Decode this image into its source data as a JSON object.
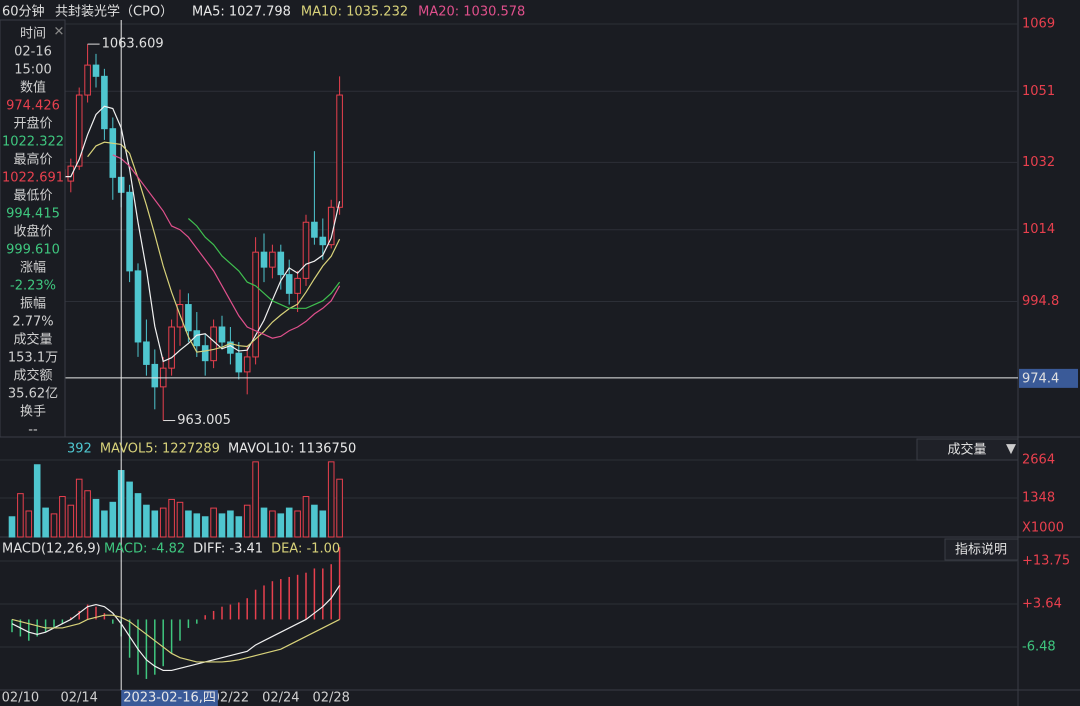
{
  "header": {
    "period": "60分钟",
    "name": "共封装光学（CPO）",
    "indicators": [
      {
        "text": "MA5: 1027.798",
        "color": "#e8e8e8"
      },
      {
        "text": "MA10: 1035.232",
        "color": "#d8d27a"
      },
      {
        "text": "MA20: 1030.578",
        "color": "#e0508c"
      }
    ]
  },
  "info_panel": [
    {
      "text": "时间",
      "color": "#d0d0d0"
    },
    {
      "text": "02-16",
      "color": "#d0d0d0"
    },
    {
      "text": "15:00",
      "color": "#d0d0d0"
    },
    {
      "text": "数值",
      "color": "#d0d0d0"
    },
    {
      "text": "974.426",
      "color": "#e8404e"
    },
    {
      "text": "开盘价",
      "color": "#d0d0d0"
    },
    {
      "text": "1022.322",
      "color": "#3fc77f"
    },
    {
      "text": "最高价",
      "color": "#d0d0d0"
    },
    {
      "text": "1022.691",
      "color": "#e8404e"
    },
    {
      "text": "最低价",
      "color": "#d0d0d0"
    },
    {
      "text": "994.415",
      "color": "#3fc77f"
    },
    {
      "text": "收盘价",
      "color": "#d0d0d0"
    },
    {
      "text": "999.610",
      "color": "#3fc77f"
    },
    {
      "text": "涨幅",
      "color": "#d0d0d0"
    },
    {
      "text": "-2.23%",
      "color": "#3fc77f"
    },
    {
      "text": "振幅",
      "color": "#d0d0d0"
    },
    {
      "text": "2.77%",
      "color": "#d0d0d0"
    },
    {
      "text": "成交量",
      "color": "#d0d0d0"
    },
    {
      "text": "153.1万",
      "color": "#d0d0d0"
    },
    {
      "text": "成交额",
      "color": "#d0d0d0"
    },
    {
      "text": "35.62亿",
      "color": "#d0d0d0"
    },
    {
      "text": "换手",
      "color": "#d0d0d0"
    },
    {
      "text": "--",
      "color": "#d0d0d0"
    }
  ],
  "chart_data": [
    {
      "type": "candlestick",
      "up_color": "#e8404e",
      "down_color": "#4fc6cf",
      "open": [
        1028,
        1026,
        1029,
        1031,
        1027,
        1025,
        1028,
        1027,
        1031,
        1050,
        1058,
        1055,
        1041,
        1028,
        1024,
        1003,
        984,
        978,
        972,
        977,
        988,
        994,
        987,
        983,
        979,
        988,
        984,
        981,
        976,
        980,
        1008,
        1004,
        1008,
        1002,
        997,
        1001,
        1016,
        1012,
        1010,
        1020
      ],
      "high": [
        1031,
        1030,
        1033,
        1034,
        1030,
        1029,
        1032,
        1033,
        1052,
        1063.609,
        1061,
        1057,
        1044,
        1036,
        1026,
        1005,
        990,
        982,
        980,
        990,
        998,
        997,
        992,
        986,
        990,
        991,
        988,
        984,
        983,
        1012,
        1013,
        1010,
        1010,
        1006,
        1003,
        1018,
        1035,
        1017,
        1022,
        1055
      ],
      "low": [
        1024,
        1022,
        1027,
        1026,
        1023,
        1021,
        1025,
        1024,
        1030,
        1048,
        1052,
        1038,
        1022,
        1020,
        1000,
        980,
        975,
        966,
        963.005,
        975,
        983,
        984,
        980,
        975,
        977,
        982,
        978,
        974,
        970,
        978,
        1000,
        1001,
        998,
        994,
        992,
        999,
        1010,
        1006,
        1009,
        1018
      ],
      "close": [
        1026,
        1029,
        1031,
        1027,
        1025,
        1028,
        1030,
        1031,
        1050,
        1058,
        1055,
        1041,
        1028,
        1024,
        1003,
        984,
        978,
        972,
        977,
        988,
        994,
        987,
        983,
        979,
        988,
        984,
        981,
        976,
        980,
        1008,
        1004,
        1008,
        1002,
        997,
        1001,
        1016,
        1012,
        1010,
        1020,
        1050
      ],
      "series": [
        {
          "color": "#f0f0f0",
          "values": [
            null,
            null,
            null,
            null,
            1027.6,
            1028,
            1028.2,
            1028.2,
            1032.8,
            1039.4,
            1044.8,
            1047,
            1046.4,
            1041.2,
            1030.2,
            1016,
            1003.4,
            988.2,
            978.8,
            979.8,
            981.8,
            983.6,
            985.8,
            986.2,
            984.2,
            982.2,
            983,
            981.6,
            981.8,
            985.8,
            989.8,
            995.2,
            1000.4,
            1003.8,
            1002.4,
            1004.8,
            1005.6,
            1007.2,
            1011.8,
            1021.6
          ]
        },
        {
          "color": "#d8d27a",
          "values": [
            null,
            null,
            null,
            null,
            null,
            null,
            null,
            null,
            null,
            1033.5,
            1036.4,
            1037.4,
            1037.1,
            1036.8,
            1034.4,
            1027.8,
            1020.6,
            1012.7,
            1004.3,
            997.3,
            991.2,
            985.4,
            981.3,
            981.6,
            982,
            982.6,
            983.6,
            983,
            982.8,
            984.8,
            986.8,
            989.3,
            991.2,
            992.9,
            994.1,
            997.3,
            1000.9,
            1004.3,
            1006.9,
            1011.5
          ]
        },
        {
          "color": "#e0508c",
          "values": [
            null,
            null,
            null,
            null,
            null,
            null,
            null,
            null,
            null,
            null,
            null,
            null,
            1034,
            1033,
            1031,
            1028,
            1025,
            1022,
            1019,
            1015,
            1014,
            1012,
            1009,
            1006,
            1003,
            999,
            995,
            991,
            988,
            987,
            986,
            985,
            985.5,
            987,
            988,
            989.5,
            991.5,
            993,
            995,
            999
          ]
        },
        {
          "color": "#3fbf4f",
          "values": [
            null,
            null,
            null,
            null,
            null,
            null,
            null,
            null,
            null,
            null,
            null,
            null,
            null,
            null,
            null,
            null,
            null,
            null,
            null,
            null,
            null,
            1017,
            1015,
            1012,
            1010,
            1007,
            1005,
            1003,
            1000,
            999,
            997,
            995,
            994,
            993,
            993,
            993,
            994,
            995,
            997,
            1000
          ]
        }
      ],
      "ylim": [
        958.6,
        1075.4
      ],
      "yticks": [
        1069,
        1051,
        1032,
        1014,
        994.8
      ],
      "annotations": [
        {
          "index": 9,
          "value": 1063.609,
          "label": "1063.609"
        },
        {
          "index": 18,
          "value": 963.005,
          "label": "963.005"
        }
      ],
      "price_line": 974.4
    },
    {
      "type": "bar",
      "indicators": [
        {
          "text": "392",
          "color": "#4fc6cf"
        },
        {
          "text": "MAVOL5: 1227289",
          "color": "#d8d27a"
        },
        {
          "text": "MAVOL10: 1136750",
          "color": "#e8e8e8"
        }
      ],
      "menu": "成交量",
      "unit": "X1000",
      "values": [
        700,
        1500,
        900,
        2500,
        1000,
        800,
        1400,
        1100,
        2000,
        1600,
        1300,
        900,
        1200,
        2300,
        1900,
        1500,
        1100,
        900,
        1000,
        1300,
        1200,
        900,
        800,
        700,
        1000,
        800,
        900,
        700,
        1100,
        2600,
        1000,
        900,
        800,
        1000,
        900,
        1400,
        1100,
        900,
        2600,
        2000
      ],
      "ylim": [
        0,
        3460
      ],
      "yticks": [
        2664,
        1348
      ]
    },
    {
      "type": "macd",
      "title": "MACD(12,26,9)",
      "indicators": [
        {
          "text": "MACD: -4.82",
          "color": "#3fc77f"
        },
        {
          "text": "DIFF: -3.41",
          "color": "#e8e8e8"
        },
        {
          "text": "DEA: -1.00",
          "color": "#d8d27a"
        }
      ],
      "button": "指标说明",
      "up_color": "#e8404e",
      "down_color": "#3fc77f",
      "values": [
        -3,
        -4,
        -5,
        -4,
        -3,
        -2,
        -1,
        0.5,
        2,
        3.5,
        3,
        1.5,
        -1,
        -4,
        -9,
        -13,
        -14,
        -13,
        -11,
        -8,
        -5,
        -2,
        -1,
        1,
        2,
        3,
        3.5,
        4,
        5,
        7,
        8,
        9,
        9.5,
        10,
        10.5,
        11,
        12,
        12,
        13,
        17
      ],
      "series": [
        {
          "color": "#f0f0f0",
          "values": [
            -1,
            -2,
            -3,
            -3.5,
            -3,
            -2,
            -1,
            0,
            1.5,
            3,
            3.5,
            3,
            1.5,
            -1,
            -4,
            -7,
            -9.5,
            -11,
            -12,
            -12,
            -11.5,
            -11,
            -10.5,
            -10,
            -9.5,
            -9,
            -8.5,
            -8,
            -7.5,
            -6,
            -5,
            -4,
            -3,
            -2,
            -1,
            0,
            1.5,
            3,
            5,
            8
          ]
        },
        {
          "color": "#d8d27a",
          "values": [
            0,
            -0.5,
            -1,
            -1.5,
            -2,
            -2,
            -2,
            -1.5,
            -1,
            0,
            0.5,
            1,
            1,
            0.5,
            -0.5,
            -2,
            -3.5,
            -5,
            -6.5,
            -8,
            -9,
            -9.5,
            -10,
            -10,
            -10,
            -10,
            -9.8,
            -9.5,
            -9,
            -8.5,
            -8,
            -7.5,
            -7,
            -6,
            -5,
            -4,
            -3,
            -2,
            -1,
            0
          ]
        }
      ],
      "ylim": [
        -16.6,
        19.4
      ],
      "yticks": [
        {
          "value": 13.75,
          "label": "+13.75"
        },
        {
          "value": 3.64,
          "label": "+3.64"
        },
        -6.48
      ],
      "xticks": [
        {
          "value": 1,
          "label": "02/10"
        },
        {
          "value": 8,
          "label": "02/14"
        },
        {
          "value": 26,
          "label": "02/22"
        },
        {
          "value": 32,
          "label": "02/24"
        },
        {
          "value": 38,
          "label": "02/28"
        }
      ],
      "cursor": {
        "value": 13,
        "label": "2023-02-16,四"
      }
    }
  ]
}
